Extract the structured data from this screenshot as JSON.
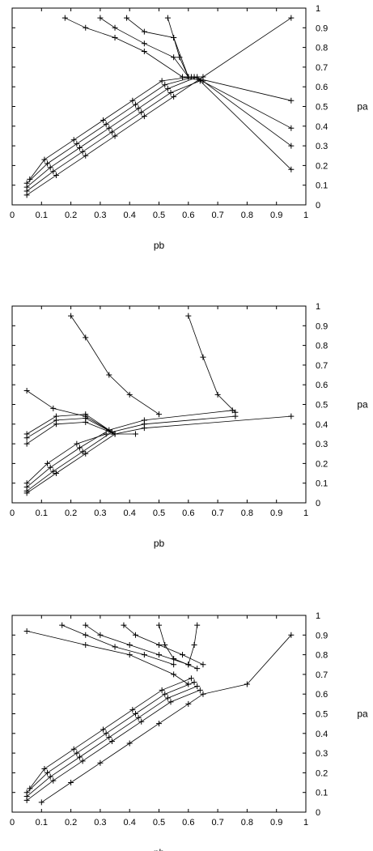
{
  "chart_data": [
    {
      "type": "line",
      "title": "",
      "xlabel": "pb",
      "ylabel": "pa",
      "xlim": [
        0,
        1
      ],
      "ylim": [
        0,
        1
      ],
      "x_ticks": [
        "0",
        "0.1",
        "0.2",
        "0.3",
        "0.4",
        "0.5",
        "0.6",
        "0.7",
        "0.8",
        "0.9",
        "1"
      ],
      "y_ticks": [
        "0",
        "0.1",
        "0.2",
        "0.3",
        "0.4",
        "0.5",
        "0.6",
        "0.7",
        "0.8",
        "0.9",
        "1"
      ],
      "grid": false,
      "marker": "+",
      "series": [
        {
          "points": [
            [
              0.05,
              0.05
            ],
            [
              0.15,
              0.15
            ],
            [
              0.25,
              0.25
            ],
            [
              0.35,
              0.35
            ],
            [
              0.45,
              0.45
            ],
            [
              0.55,
              0.55
            ],
            [
              0.65,
              0.65
            ],
            [
              0.95,
              0.95
            ]
          ]
        },
        {
          "points": [
            [
              0.05,
              0.07
            ],
            [
              0.14,
              0.17
            ],
            [
              0.24,
              0.27
            ],
            [
              0.34,
              0.37
            ],
            [
              0.44,
              0.47
            ],
            [
              0.54,
              0.57
            ],
            [
              0.64,
              0.63
            ],
            [
              0.95,
              0.18
            ]
          ]
        },
        {
          "points": [
            [
              0.05,
              0.09
            ],
            [
              0.13,
              0.19
            ],
            [
              0.23,
              0.29
            ],
            [
              0.33,
              0.39
            ],
            [
              0.43,
              0.49
            ],
            [
              0.53,
              0.59
            ],
            [
              0.63,
              0.65
            ],
            [
              0.95,
              0.3
            ]
          ]
        },
        {
          "points": [
            [
              0.05,
              0.11
            ],
            [
              0.12,
              0.21
            ],
            [
              0.22,
              0.31
            ],
            [
              0.32,
              0.41
            ],
            [
              0.42,
              0.51
            ],
            [
              0.52,
              0.61
            ],
            [
              0.62,
              0.65
            ],
            [
              0.95,
              0.39
            ]
          ]
        },
        {
          "points": [
            [
              0.06,
              0.13
            ],
            [
              0.11,
              0.23
            ],
            [
              0.21,
              0.33
            ],
            [
              0.31,
              0.43
            ],
            [
              0.41,
              0.53
            ],
            [
              0.51,
              0.63
            ],
            [
              0.61,
              0.65
            ],
            [
              0.95,
              0.53
            ]
          ]
        },
        {
          "points": [
            [
              0.18,
              0.95
            ],
            [
              0.25,
              0.9
            ],
            [
              0.35,
              0.85
            ],
            [
              0.45,
              0.78
            ],
            [
              0.58,
              0.65
            ],
            [
              0.65,
              0.63
            ]
          ]
        },
        {
          "points": [
            [
              0.3,
              0.95
            ],
            [
              0.35,
              0.9
            ],
            [
              0.45,
              0.82
            ],
            [
              0.55,
              0.75
            ],
            [
              0.6,
              0.65
            ]
          ]
        },
        {
          "points": [
            [
              0.39,
              0.95
            ],
            [
              0.45,
              0.88
            ],
            [
              0.55,
              0.85
            ],
            [
              0.6,
              0.65
            ]
          ]
        },
        {
          "points": [
            [
              0.53,
              0.95
            ],
            [
              0.55,
              0.85
            ],
            [
              0.57,
              0.75
            ],
            [
              0.6,
              0.65
            ]
          ]
        }
      ]
    },
    {
      "type": "line",
      "title": "",
      "xlabel": "pb",
      "ylabel": "pa",
      "xlim": [
        0,
        1
      ],
      "ylim": [
        0,
        1
      ],
      "x_ticks": [
        "0",
        "0.1",
        "0.2",
        "0.3",
        "0.4",
        "0.5",
        "0.6",
        "0.7",
        "0.8",
        "0.9",
        "1"
      ],
      "y_ticks": [
        "0",
        "0.1",
        "0.2",
        "0.3",
        "0.4",
        "0.5",
        "0.6",
        "0.7",
        "0.8",
        "0.9",
        "1"
      ],
      "grid": false,
      "marker": "+",
      "series": [
        {
          "points": [
            [
              0.05,
              0.05
            ],
            [
              0.15,
              0.15
            ],
            [
              0.25,
              0.25
            ],
            [
              0.35,
              0.35
            ],
            [
              0.45,
              0.38
            ],
            [
              0.95,
              0.44
            ]
          ]
        },
        {
          "points": [
            [
              0.05,
              0.06
            ],
            [
              0.14,
              0.16
            ],
            [
              0.24,
              0.26
            ],
            [
              0.34,
              0.36
            ],
            [
              0.45,
              0.4
            ],
            [
              0.76,
              0.44
            ]
          ]
        },
        {
          "points": [
            [
              0.05,
              0.08
            ],
            [
              0.13,
              0.18
            ],
            [
              0.23,
              0.28
            ],
            [
              0.33,
              0.37
            ],
            [
              0.45,
              0.42
            ],
            [
              0.75,
              0.47
            ]
          ]
        },
        {
          "points": [
            [
              0.05,
              0.1
            ],
            [
              0.12,
              0.2
            ],
            [
              0.22,
              0.3
            ],
            [
              0.32,
              0.35
            ],
            [
              0.42,
              0.35
            ]
          ]
        },
        {
          "points": [
            [
              0.05,
              0.3
            ],
            [
              0.15,
              0.4
            ],
            [
              0.25,
              0.41
            ],
            [
              0.35,
              0.35
            ]
          ]
        },
        {
          "points": [
            [
              0.05,
              0.33
            ],
            [
              0.15,
              0.42
            ],
            [
              0.25,
              0.43
            ],
            [
              0.35,
              0.35
            ]
          ]
        },
        {
          "points": [
            [
              0.05,
              0.35
            ],
            [
              0.15,
              0.44
            ],
            [
              0.25,
              0.45
            ],
            [
              0.35,
              0.35
            ]
          ]
        },
        {
          "points": [
            [
              0.05,
              0.57
            ],
            [
              0.14,
              0.48
            ],
            [
              0.25,
              0.44
            ],
            [
              0.35,
              0.35
            ]
          ]
        },
        {
          "points": [
            [
              0.2,
              0.95
            ],
            [
              0.25,
              0.84
            ],
            [
              0.33,
              0.65
            ],
            [
              0.4,
              0.55
            ],
            [
              0.5,
              0.45
            ]
          ]
        },
        {
          "points": [
            [
              0.6,
              0.95
            ],
            [
              0.65,
              0.74
            ],
            [
              0.7,
              0.55
            ],
            [
              0.76,
              0.46
            ]
          ]
        }
      ]
    },
    {
      "type": "line",
      "title": "",
      "xlabel": "pb",
      "ylabel": "pa",
      "xlim": [
        0,
        1
      ],
      "ylim": [
        0,
        1
      ],
      "x_ticks": [
        "0",
        "0.1",
        "0.2",
        "0.3",
        "0.4",
        "0.5",
        "0.6",
        "0.7",
        "0.8",
        "0.9",
        "1"
      ],
      "y_ticks": [
        "0",
        "0.1",
        "0.2",
        "0.3",
        "0.4",
        "0.5",
        "0.6",
        "0.7",
        "0.8",
        "0.9",
        "1"
      ],
      "grid": false,
      "marker": "+",
      "series": [
        {
          "points": [
            [
              0.1,
              0.05
            ],
            [
              0.2,
              0.15
            ],
            [
              0.3,
              0.25
            ],
            [
              0.4,
              0.35
            ],
            [
              0.5,
              0.45
            ],
            [
              0.6,
              0.55
            ],
            [
              0.65,
              0.6
            ],
            [
              0.8,
              0.65
            ],
            [
              0.95,
              0.9
            ]
          ]
        },
        {
          "points": [
            [
              0.05,
              0.06
            ],
            [
              0.14,
              0.16
            ],
            [
              0.24,
              0.26
            ],
            [
              0.34,
              0.36
            ],
            [
              0.44,
              0.46
            ],
            [
              0.54,
              0.56
            ],
            [
              0.64,
              0.62
            ]
          ]
        },
        {
          "points": [
            [
              0.05,
              0.08
            ],
            [
              0.13,
              0.18
            ],
            [
              0.23,
              0.28
            ],
            [
              0.33,
              0.38
            ],
            [
              0.43,
              0.48
            ],
            [
              0.53,
              0.58
            ],
            [
              0.63,
              0.64
            ]
          ]
        },
        {
          "points": [
            [
              0.05,
              0.1
            ],
            [
              0.12,
              0.2
            ],
            [
              0.22,
              0.3
            ],
            [
              0.32,
              0.4
            ],
            [
              0.42,
              0.5
            ],
            [
              0.52,
              0.6
            ],
            [
              0.62,
              0.66
            ]
          ]
        },
        {
          "points": [
            [
              0.06,
              0.12
            ],
            [
              0.11,
              0.22
            ],
            [
              0.21,
              0.32
            ],
            [
              0.31,
              0.42
            ],
            [
              0.41,
              0.52
            ],
            [
              0.51,
              0.62
            ],
            [
              0.61,
              0.68
            ]
          ]
        },
        {
          "points": [
            [
              0.05,
              0.92
            ],
            [
              0.25,
              0.85
            ],
            [
              0.4,
              0.8
            ],
            [
              0.55,
              0.7
            ],
            [
              0.6,
              0.65
            ]
          ]
        },
        {
          "points": [
            [
              0.17,
              0.95
            ],
            [
              0.25,
              0.9
            ],
            [
              0.35,
              0.84
            ],
            [
              0.45,
              0.8
            ],
            [
              0.55,
              0.75
            ]
          ]
        },
        {
          "points": [
            [
              0.25,
              0.95
            ],
            [
              0.3,
              0.9
            ],
            [
              0.4,
              0.85
            ],
            [
              0.5,
              0.8
            ],
            [
              0.6,
              0.75
            ]
          ]
        },
        {
          "points": [
            [
              0.38,
              0.95
            ],
            [
              0.42,
              0.9
            ],
            [
              0.5,
              0.85
            ],
            [
              0.58,
              0.8
            ],
            [
              0.65,
              0.75
            ]
          ]
        },
        {
          "points": [
            [
              0.5,
              0.95
            ],
            [
              0.52,
              0.85
            ],
            [
              0.55,
              0.78
            ],
            [
              0.63,
              0.73
            ]
          ]
        },
        {
          "points": [
            [
              0.63,
              0.95
            ],
            [
              0.62,
              0.85
            ],
            [
              0.6,
              0.75
            ]
          ]
        }
      ]
    }
  ]
}
